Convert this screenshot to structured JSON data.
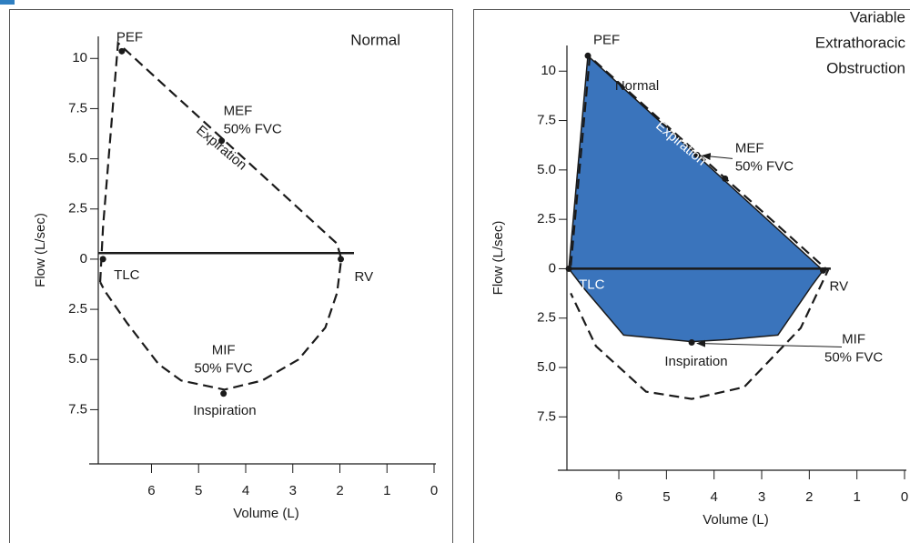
{
  "chart_data": [
    {
      "type": "line",
      "title": "Normal",
      "xlabel": "Volume (L)",
      "ylabel": "Flow (L/sec)",
      "xlim": [
        7.13,
        0
      ],
      "ylim": [
        -10.2,
        11.1
      ],
      "xticks": [
        6,
        5,
        4,
        3,
        2,
        1,
        0
      ],
      "yticks": [
        {
          "value": -7.5,
          "label": "7.5"
        },
        {
          "value": -5,
          "label": "5.0"
        },
        {
          "value": -2.5,
          "label": "2.5"
        },
        0,
        2.5,
        {
          "value": 5,
          "label": "5.0"
        },
        7.5,
        10
      ],
      "series": [
        {
          "color": "#1a1a1a",
          "dash": true,
          "x": [
            7.09,
            7.03,
            6.71,
            2.06,
            1.97,
            2.06,
            2.31,
            2.88,
            3.65,
            4.45,
            5.37,
            5.85,
            6.52,
            6.99,
            7.09
          ],
          "values": [
            -1.14,
            1.59,
            10.77,
            0.77,
            0,
            -1.68,
            -3.41,
            -5.0,
            -6.05,
            -6.5,
            -6.05,
            -5.23,
            -3.18,
            -1.59,
            -1.14
          ]
        },
        {
          "color": "#1a1a1a",
          "dash": false,
          "x": [
            7.13,
            1.7
          ],
          "values": [
            0.3,
            0.3
          ]
        }
      ],
      "points": {
        "labels": [
          [
            "PEF"
          ],
          [
            "MEF",
            "50% FVC"
          ],
          [
            "TLC"
          ],
          [
            "RV"
          ],
          [
            "MIF",
            "50% FVC"
          ]
        ],
        "x": [
          6.63,
          4.51,
          7.03,
          1.98,
          4.47
        ],
        "y": [
          10.36,
          5.9,
          0,
          0,
          -6.7
        ]
      },
      "annotations": [
        "Expiration",
        "Inspiration"
      ]
    },
    {
      "type": "line",
      "title": [
        "Variable",
        "Extrathoracic",
        "Obstruction"
      ],
      "xlabel": "Volume (L)",
      "ylabel": "Flow (L/sec)",
      "xlim": [
        7.09,
        0
      ],
      "ylim": [
        -10.2,
        11.3
      ],
      "xticks": [
        6,
        5,
        4,
        3,
        2,
        1,
        0
      ],
      "yticks": [
        {
          "value": -7.5,
          "label": "7.5"
        },
        {
          "value": -5,
          "label": "5.0"
        },
        {
          "value": -2.5,
          "label": "2.5"
        },
        0,
        2.5,
        {
          "value": 5,
          "label": "5.0"
        },
        7.5,
        10
      ],
      "series": [
        {
          "color": "#1a1a1a",
          "fill": "#3a74bc",
          "dash": false,
          "x": [
            7.05,
            6.65,
            1.71,
            1.94,
            2.66,
            3.71,
            4.47,
            5.9,
            6.76,
            7.05
          ],
          "values": [
            0,
            10.78,
            -0.09,
            -0.83,
            -3.36,
            -3.59,
            -3.69,
            -3.36,
            -0.92,
            0
          ]
        },
        {
          "color": "#1a1a1a",
          "dash": true,
          "x": [
            7.01,
            6.61,
            1.61,
            2.18,
            3.37,
            4.47,
            5.43,
            6.48,
            7.01
          ],
          "values": [
            0.14,
            10.74,
            -0.09,
            -3.0,
            -5.99,
            -6.59,
            -6.22,
            -3.92,
            -1.24
          ]
        },
        {
          "color": "#1a1a1a",
          "dash": false,
          "x": [
            7.09,
            1.55
          ],
          "values": [
            0,
            0
          ]
        }
      ],
      "points": {
        "labels": [
          [
            "PEF"
          ],
          [
            "MEF",
            "50% FVC"
          ],
          null,
          [
            "TLC"
          ],
          [
            "RV"
          ],
          [
            "MIF",
            "50% FVC"
          ]
        ],
        "x": [
          6.65,
          4.36,
          3.77,
          7.05,
          1.71,
          4.47
        ],
        "y": [
          10.78,
          5.76,
          4.56,
          0,
          -0.09,
          -3.73
        ]
      },
      "annotations": [
        "Normal",
        "Expiration",
        "Inspiration"
      ]
    }
  ]
}
